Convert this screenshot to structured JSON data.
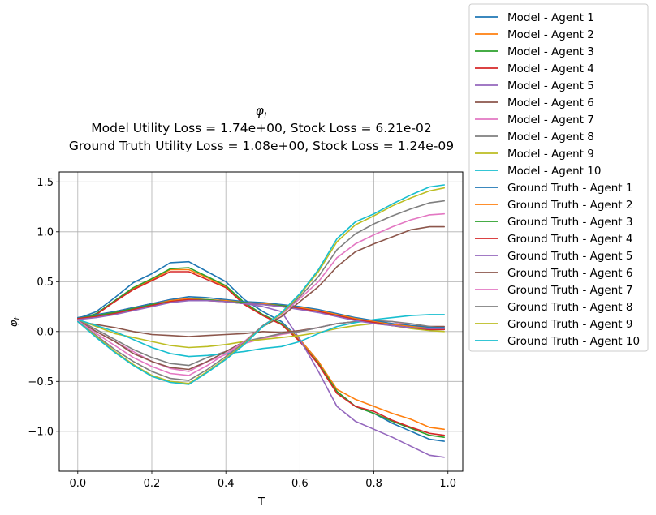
{
  "chart_data": {
    "type": "line",
    "title": {
      "symbol": "φ",
      "subscript": "t",
      "line2": "Model Utility Loss = 1.74e+00, Stock Loss = 6.21e-02",
      "line3": "Ground Truth Utility Loss = 1.08e+00, Stock Loss = 1.24e-09"
    },
    "xlabel": "T",
    "ylabel": {
      "symbol": "φ",
      "subscript": "t"
    },
    "xlim": [
      -0.05,
      1.04
    ],
    "ylim": [
      -1.4,
      1.6
    ],
    "xticks": [
      0.0,
      0.2,
      0.4,
      0.6,
      0.8,
      1.0
    ],
    "xtick_labels": [
      "0.0",
      "0.2",
      "0.4",
      "0.6",
      "0.8",
      "1.0"
    ],
    "yticks": [
      -1.0,
      -0.5,
      0.0,
      0.5,
      1.0,
      1.5
    ],
    "ytick_labels": [
      "−1.0",
      "−0.5",
      "0.0",
      "0.5",
      "1.0",
      "1.5"
    ],
    "grid": true,
    "legend_position": "outside right, top",
    "x": [
      0.0,
      0.05,
      0.1,
      0.15,
      0.2,
      0.25,
      0.3,
      0.35,
      0.4,
      0.45,
      0.5,
      0.55,
      0.6,
      0.65,
      0.7,
      0.75,
      0.8,
      0.85,
      0.9,
      0.95,
      0.99
    ],
    "series": [
      {
        "name": "Model - Agent 1",
        "color": "#1f77b4",
        "values": [
          0.13,
          0.2,
          0.34,
          0.49,
          0.58,
          0.69,
          0.7,
          0.6,
          0.5,
          0.32,
          0.2,
          0.1,
          -0.08,
          -0.3,
          -0.6,
          -0.75,
          -0.82,
          -0.92,
          -1.0,
          -1.08,
          -1.1
        ]
      },
      {
        "name": "Model - Agent 2",
        "color": "#ff7f0e",
        "values": [
          0.12,
          0.18,
          0.3,
          0.43,
          0.52,
          0.62,
          0.62,
          0.54,
          0.45,
          0.28,
          0.16,
          0.08,
          -0.08,
          -0.3,
          -0.58,
          -0.68,
          -0.75,
          -0.82,
          -0.88,
          -0.96,
          -0.98
        ]
      },
      {
        "name": "Model - Agent 3",
        "color": "#2ca02c",
        "values": [
          0.12,
          0.18,
          0.31,
          0.44,
          0.53,
          0.63,
          0.64,
          0.55,
          0.46,
          0.29,
          0.17,
          0.08,
          -0.1,
          -0.32,
          -0.6,
          -0.75,
          -0.82,
          -0.9,
          -0.97,
          -1.04,
          -1.06
        ]
      },
      {
        "name": "Model - Agent 4",
        "color": "#d62728",
        "values": [
          0.12,
          0.17,
          0.3,
          0.42,
          0.51,
          0.6,
          0.6,
          0.52,
          0.44,
          0.27,
          0.16,
          0.07,
          -0.1,
          -0.33,
          -0.62,
          -0.75,
          -0.8,
          -0.89,
          -0.96,
          -1.02,
          -1.04
        ]
      },
      {
        "name": "Model - Agent 5",
        "color": "#9467bd",
        "values": [
          0.12,
          0.16,
          0.2,
          0.24,
          0.28,
          0.32,
          0.33,
          0.32,
          0.3,
          0.28,
          0.25,
          0.2,
          -0.08,
          -0.4,
          -0.75,
          -0.9,
          -0.98,
          -1.06,
          -1.15,
          -1.24,
          -1.26
        ]
      },
      {
        "name": "Model - Agent 6",
        "color": "#8c564b",
        "values": [
          0.1,
          0.07,
          0.04,
          0.0,
          -0.03,
          -0.04,
          -0.05,
          -0.04,
          -0.03,
          -0.02,
          0.0,
          -0.01,
          0.01,
          0.04,
          0.08,
          0.1,
          0.1,
          0.08,
          0.06,
          0.05,
          0.05
        ]
      },
      {
        "name": "Model - Agent 7",
        "color": "#e377c2",
        "values": [
          0.12,
          0.0,
          -0.1,
          -0.2,
          -0.3,
          -0.37,
          -0.4,
          -0.3,
          -0.23,
          -0.12,
          -0.07,
          -0.03,
          0.0,
          0.04,
          0.08,
          0.1,
          0.11,
          0.1,
          0.06,
          0.03,
          0.02
        ]
      },
      {
        "name": "Model - Agent 8",
        "color": "#7f7f7f",
        "values": [
          0.12,
          0.02,
          -0.08,
          -0.18,
          -0.26,
          -0.32,
          -0.34,
          -0.26,
          -0.2,
          -0.1,
          -0.06,
          -0.02,
          0.0,
          0.04,
          0.08,
          0.1,
          0.11,
          0.1,
          0.08,
          0.05,
          0.03
        ]
      },
      {
        "name": "Model - Agent 9",
        "color": "#bcbd22",
        "values": [
          0.12,
          0.05,
          -0.02,
          -0.06,
          -0.1,
          -0.14,
          -0.16,
          -0.15,
          -0.13,
          -0.1,
          -0.08,
          -0.06,
          -0.04,
          -0.01,
          0.03,
          0.06,
          0.08,
          0.06,
          0.03,
          0.01,
          0.0
        ]
      },
      {
        "name": "Model - Agent 10",
        "color": "#17becf",
        "values": [
          0.12,
          0.06,
          0.0,
          -0.08,
          -0.16,
          -0.22,
          -0.25,
          -0.24,
          -0.22,
          -0.2,
          -0.17,
          -0.15,
          -0.1,
          -0.02,
          0.05,
          0.09,
          0.12,
          0.14,
          0.16,
          0.17,
          0.17
        ]
      },
      {
        "name": "Ground Truth - Agent 1",
        "color": "#1f77b4",
        "values": [
          0.14,
          0.17,
          0.2,
          0.24,
          0.28,
          0.32,
          0.35,
          0.34,
          0.32,
          0.3,
          0.29,
          0.27,
          0.25,
          0.22,
          0.18,
          0.14,
          0.11,
          0.08,
          0.06,
          0.04,
          0.04
        ]
      },
      {
        "name": "Ground Truth - Agent 2",
        "color": "#ff7f0e",
        "values": [
          0.13,
          0.16,
          0.19,
          0.23,
          0.27,
          0.31,
          0.33,
          0.32,
          0.31,
          0.29,
          0.28,
          0.26,
          0.24,
          0.21,
          0.17,
          0.13,
          0.1,
          0.07,
          0.05,
          0.03,
          0.03
        ]
      },
      {
        "name": "Ground Truth - Agent 3",
        "color": "#2ca02c",
        "values": [
          0.13,
          0.16,
          0.19,
          0.23,
          0.27,
          0.3,
          0.32,
          0.32,
          0.3,
          0.29,
          0.27,
          0.26,
          0.23,
          0.2,
          0.16,
          0.12,
          0.09,
          0.06,
          0.04,
          0.02,
          0.02
        ]
      },
      {
        "name": "Ground Truth - Agent 4",
        "color": "#d62728",
        "values": [
          0.13,
          0.15,
          0.18,
          0.22,
          0.26,
          0.3,
          0.32,
          0.31,
          0.3,
          0.28,
          0.27,
          0.25,
          0.23,
          0.2,
          0.16,
          0.12,
          0.09,
          0.06,
          0.04,
          0.02,
          0.02
        ]
      },
      {
        "name": "Ground Truth - Agent 5",
        "color": "#9467bd",
        "values": [
          0.12,
          0.14,
          0.17,
          0.21,
          0.25,
          0.29,
          0.31,
          0.31,
          0.3,
          0.28,
          0.27,
          0.25,
          0.22,
          0.19,
          0.15,
          0.11,
          0.08,
          0.06,
          0.04,
          0.03,
          0.03
        ]
      },
      {
        "name": "Ground Truth - Agent 6",
        "color": "#8c564b",
        "values": [
          0.11,
          0.0,
          -0.1,
          -0.22,
          -0.3,
          -0.36,
          -0.38,
          -0.3,
          -0.2,
          -0.1,
          0.05,
          0.15,
          0.3,
          0.45,
          0.65,
          0.8,
          0.88,
          0.95,
          1.02,
          1.05,
          1.05
        ]
      },
      {
        "name": "Ground Truth - Agent 7",
        "color": "#e377c2",
        "values": [
          0.11,
          -0.02,
          -0.14,
          -0.26,
          -0.35,
          -0.42,
          -0.44,
          -0.34,
          -0.22,
          -0.1,
          0.06,
          0.17,
          0.33,
          0.5,
          0.74,
          0.88,
          0.97,
          1.05,
          1.12,
          1.17,
          1.18
        ]
      },
      {
        "name": "Ground Truth - Agent 8",
        "color": "#7f7f7f",
        "values": [
          0.1,
          -0.04,
          -0.18,
          -0.3,
          -0.4,
          -0.47,
          -0.49,
          -0.38,
          -0.25,
          -0.11,
          0.06,
          0.18,
          0.35,
          0.55,
          0.82,
          0.98,
          1.08,
          1.16,
          1.23,
          1.29,
          1.31
        ]
      },
      {
        "name": "Ground Truth - Agent 9",
        "color": "#bcbd22",
        "values": [
          0.1,
          -0.05,
          -0.2,
          -0.33,
          -0.44,
          -0.5,
          -0.52,
          -0.4,
          -0.27,
          -0.12,
          0.05,
          0.18,
          0.37,
          0.6,
          0.9,
          1.07,
          1.16,
          1.26,
          1.34,
          1.41,
          1.44
        ]
      },
      {
        "name": "Ground Truth - Agent 10",
        "color": "#17becf",
        "values": [
          0.1,
          -0.06,
          -0.21,
          -0.34,
          -0.45,
          -0.51,
          -0.53,
          -0.41,
          -0.28,
          -0.13,
          0.05,
          0.19,
          0.38,
          0.62,
          0.93,
          1.1,
          1.18,
          1.28,
          1.37,
          1.45,
          1.47
        ]
      }
    ]
  }
}
